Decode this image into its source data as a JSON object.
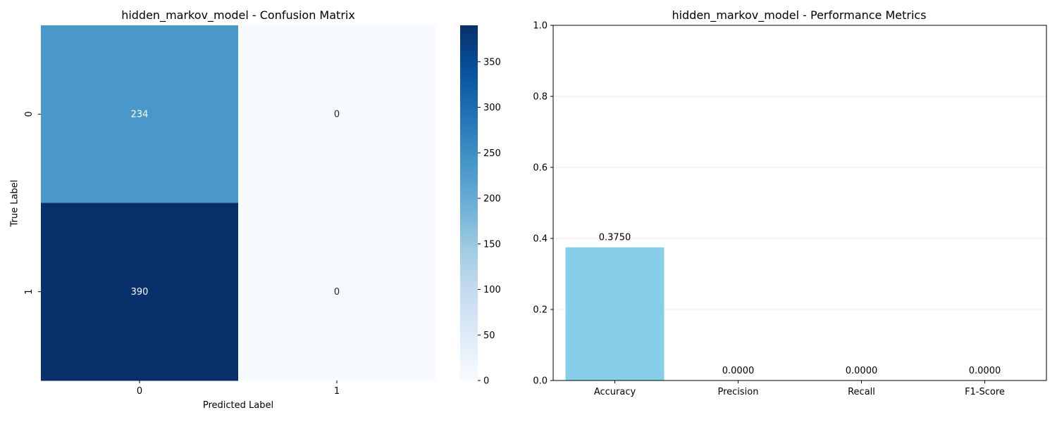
{
  "chart_data": [
    {
      "type": "heatmap",
      "title": "hidden_markov_model - Confusion Matrix",
      "xlabel": "Predicted Label",
      "ylabel": "True Label",
      "x_categories": [
        "0",
        "1"
      ],
      "y_categories": [
        "0",
        "1"
      ],
      "values": [
        [
          234,
          0
        ],
        [
          390,
          0
        ]
      ],
      "colormap": "Blues",
      "vmin": 0,
      "vmax": 390,
      "colorbar_ticks": [
        0,
        50,
        100,
        150,
        200,
        250,
        300,
        350
      ]
    },
    {
      "type": "bar",
      "title": "hidden_markov_model - Performance Metrics",
      "categories": [
        "Accuracy",
        "Precision",
        "Recall",
        "F1-Score"
      ],
      "values": [
        0.375,
        0.0,
        0.0,
        0.0
      ],
      "data_labels": [
        "0.3750",
        "0.0000",
        "0.0000",
        "0.0000"
      ],
      "ylim": [
        0,
        1
      ],
      "yticks": [
        "0.0",
        "0.2",
        "0.4",
        "0.6",
        "0.8",
        "1.0"
      ],
      "bar_color": "#87ceeb",
      "grid": "y"
    }
  ]
}
